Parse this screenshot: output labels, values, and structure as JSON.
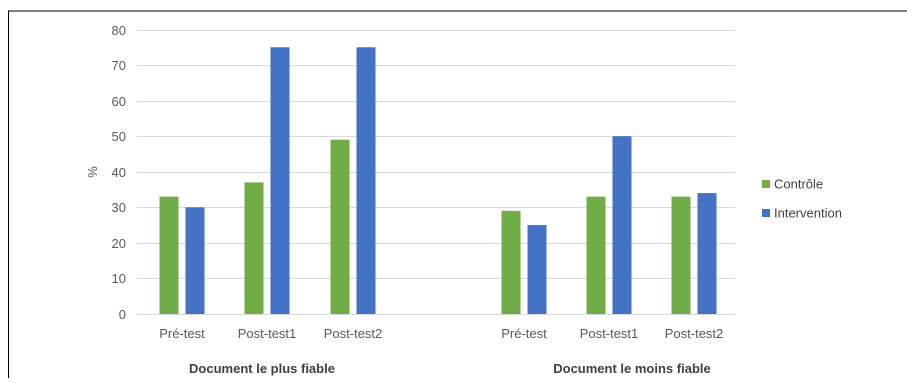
{
  "chart_data": {
    "type": "bar",
    "ylabel": "%",
    "ylim": [
      0,
      80
    ],
    "yticks": [
      0,
      10,
      20,
      30,
      40,
      50,
      60,
      70,
      80
    ],
    "grid": true,
    "legend_position": "right",
    "groups": [
      {
        "label": "Document le plus fiable",
        "categories": [
          "Pré-test",
          "Post-test1",
          "Post-test2"
        ]
      },
      {
        "label": "Document le moins fiable",
        "categories": [
          "Pré-test",
          "Post-test1",
          "Post-test2"
        ]
      }
    ],
    "series": [
      {
        "name": "Contrôle",
        "color": "#70ad47",
        "values": [
          33,
          37,
          49,
          29,
          33,
          33
        ]
      },
      {
        "name": "Intervention",
        "color": "#4472c4",
        "values": [
          30,
          75,
          75,
          25,
          50,
          34
        ]
      }
    ]
  }
}
